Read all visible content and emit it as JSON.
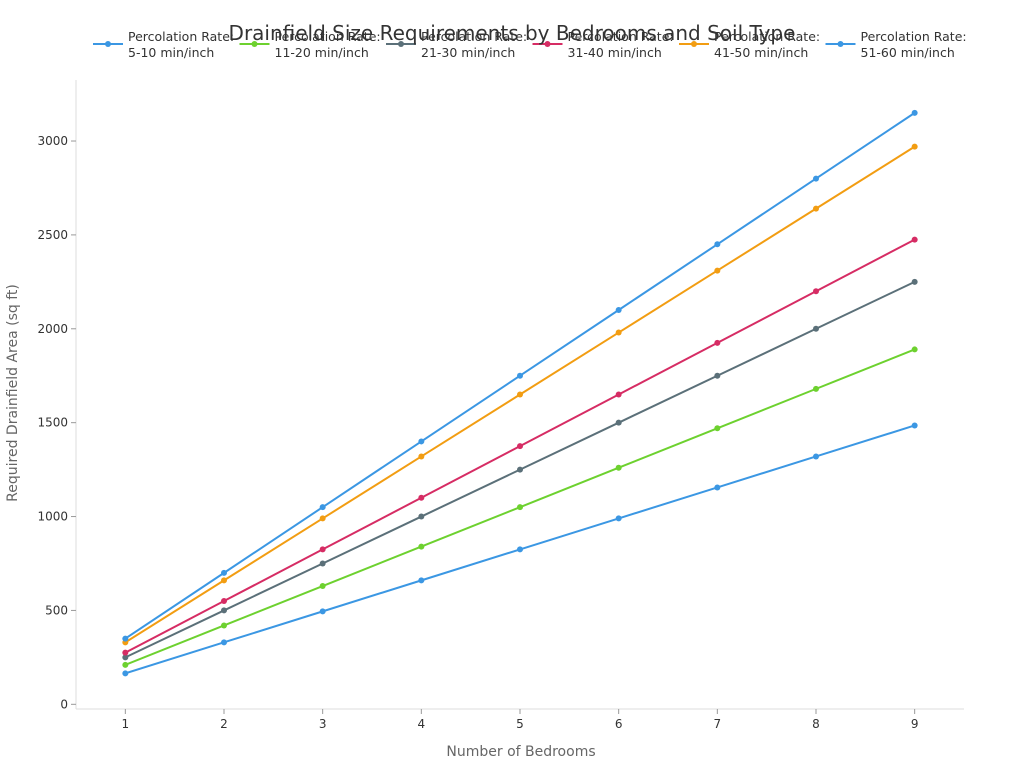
{
  "chart_data": {
    "type": "line",
    "title": "Drainfield Size Requirements by Bedrooms and Soil Type",
    "xlabel": "Number of Bedrooms",
    "ylabel": "Required Drainfield Area (sq ft)",
    "x": [
      1,
      2,
      3,
      4,
      5,
      6,
      7,
      8,
      9
    ],
    "xlim": [
      0.5,
      9.5
    ],
    "ylim": [
      -25,
      3325
    ],
    "y_ticks": [
      0,
      500,
      1000,
      1500,
      2000,
      2500,
      3000
    ],
    "grid": false,
    "legend_position": "top",
    "series": [
      {
        "name": "Percolation Rate:\n5-10 min/inch",
        "color": "#3b97e3",
        "values": [
          165,
          330,
          495,
          660,
          825,
          990,
          1155,
          1320,
          1485
        ]
      },
      {
        "name": "Percolation Rate:\n11-20 min/inch",
        "color": "#6dd12f",
        "values": [
          210,
          420,
          630,
          840,
          1050,
          1260,
          1470,
          1680,
          1890
        ]
      },
      {
        "name": "Percolation Rate:\n21-30 min/inch",
        "color": "#5b7079",
        "values": [
          250,
          500,
          750,
          1000,
          1250,
          1500,
          1750,
          2000,
          2250
        ]
      },
      {
        "name": "Percolation Rate:\n31-40 min/inch",
        "color": "#d62c64",
        "values": [
          275,
          550,
          825,
          1100,
          1375,
          1650,
          1925,
          2200,
          2475
        ]
      },
      {
        "name": "Percolation Rate:\n41-50 min/inch",
        "color": "#f29d12",
        "values": [
          330,
          660,
          990,
          1320,
          1650,
          1980,
          2310,
          2640,
          2970
        ]
      },
      {
        "name": "Percolation Rate:\n51-60 min/inch",
        "color": "#3b97e3",
        "values": [
          350,
          700,
          1050,
          1400,
          1750,
          2100,
          2450,
          2800,
          3150
        ]
      }
    ]
  }
}
